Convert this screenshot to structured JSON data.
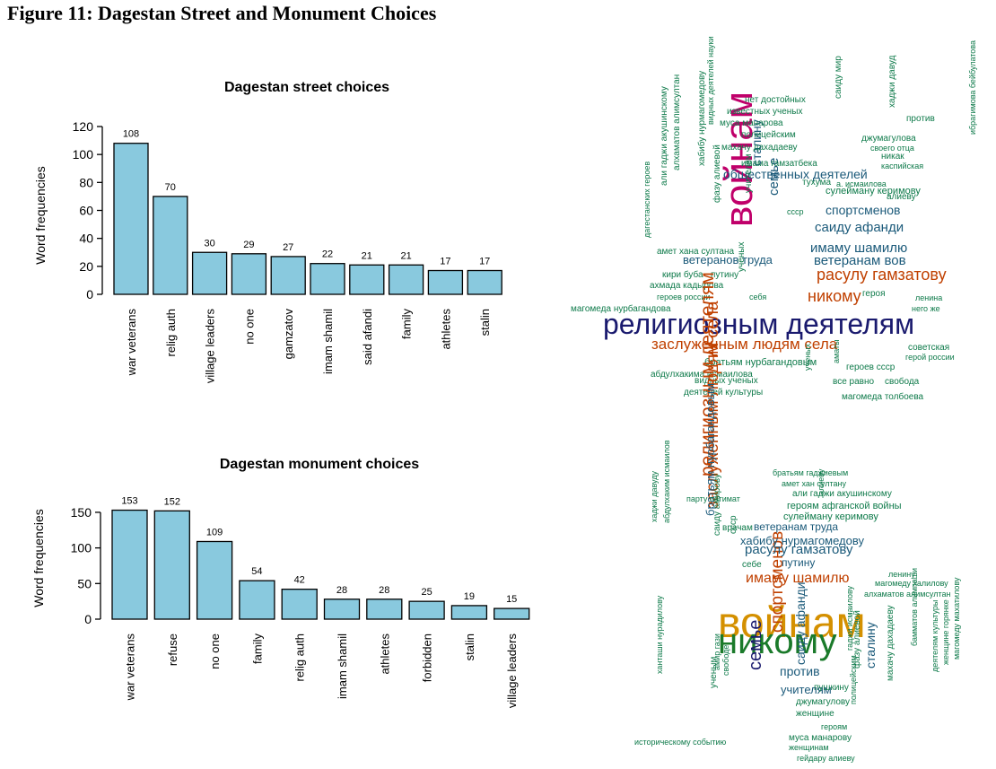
{
  "figure": {
    "title": "Figure 11: Dagestan Street and Monument Choices"
  },
  "chart_data": [
    {
      "id": "street",
      "type": "bar",
      "title": "Dagestan street choices",
      "xlabel": "",
      "ylabel": "Word frequencies",
      "categories": [
        "war veterans",
        "relig auth",
        "village leaders",
        "no one",
        "gamzatov",
        "imam shamil",
        "said afandi",
        "family",
        "athletes",
        "stalin"
      ],
      "values": [
        108,
        70,
        30,
        29,
        27,
        22,
        21,
        21,
        17,
        17
      ],
      "ylim": [
        0,
        120
      ],
      "yticks": [
        0,
        20,
        40,
        60,
        80,
        100,
        120
      ],
      "bar_color": "#89c9de",
      "grid": false
    },
    {
      "id": "monument",
      "type": "bar",
      "title": "Dagestan monument choices",
      "xlabel": "",
      "ylabel": "Word frequencies",
      "categories": [
        "war veterans",
        "refuse",
        "no one",
        "family",
        "relig auth",
        "imam shamil",
        "athletes",
        "forbidden",
        "stalin",
        "village leaders"
      ],
      "values": [
        153,
        152,
        109,
        54,
        42,
        28,
        28,
        25,
        19,
        15
      ],
      "ylim": [
        0,
        160
      ],
      "yticks": [
        0,
        50,
        100,
        150
      ],
      "bar_color": "#89c9de",
      "grid": false
    }
  ],
  "wordclouds": {
    "street": {
      "words": [
        {
          "text": "религиозным деятелям",
          "color": "#1a1a6e"
        },
        {
          "text": "войнам",
          "color": "#c0006a"
        },
        {
          "text": "заслуженным людям села",
          "color": "#c04000"
        },
        {
          "text": "расулу гамзатову",
          "color": "#c04000"
        },
        {
          "text": "никому",
          "color": "#c04000"
        },
        {
          "text": "имаму шамилю",
          "color": "#1b5a7a"
        },
        {
          "text": "саиду афанди",
          "color": "#1b5a7a"
        },
        {
          "text": "ветеранам вов",
          "color": "#1b5a7a"
        },
        {
          "text": "спортсменов",
          "color": "#1b5a7a"
        },
        {
          "text": "общественных деятелей",
          "color": "#1b5a7a"
        },
        {
          "text": "семье",
          "color": "#1b5a7a"
        },
        {
          "text": "сталину",
          "color": "#1b5a7a"
        },
        {
          "text": "ветеранов труда",
          "color": "#1b5a7a"
        },
        {
          "text": "сулейману керимову",
          "color": "#0e7a4a"
        },
        {
          "text": "имама гамзатбека",
          "color": "#0e7a4a"
        },
        {
          "text": "махачу дахадаеву",
          "color": "#0e7a4a"
        },
        {
          "text": "полицейским",
          "color": "#0e7a4a"
        },
        {
          "text": "муса манарова",
          "color": "#0e7a4a"
        },
        {
          "text": "известных ученых",
          "color": "#0e7a4a"
        },
        {
          "text": "нет достойных",
          "color": "#0e7a4a"
        },
        {
          "text": "джумагулова",
          "color": "#0e7a4a"
        },
        {
          "text": "своего отца",
          "color": "#0e7a4a"
        },
        {
          "text": "каспийская",
          "color": "#0e7a4a"
        },
        {
          "text": "тухума",
          "color": "#0e7a4a"
        },
        {
          "text": "а. исмаилова",
          "color": "#0e7a4a"
        },
        {
          "text": "алиеву",
          "color": "#0e7a4a"
        },
        {
          "text": "ахмада кадырова",
          "color": "#0e7a4a"
        },
        {
          "text": "кири буба",
          "color": "#0e7a4a"
        },
        {
          "text": "путину",
          "color": "#0e7a4a"
        },
        {
          "text": "амет хана султана",
          "color": "#0e7a4a"
        },
        {
          "text": "героев россии",
          "color": "#0e7a4a"
        },
        {
          "text": "себя",
          "color": "#0e7a4a"
        },
        {
          "text": "магомеда нурбагандова",
          "color": "#0e7a4a"
        },
        {
          "text": "героя",
          "color": "#0e7a4a"
        },
        {
          "text": "ленина",
          "color": "#0e7a4a"
        },
        {
          "text": "него же",
          "color": "#0e7a4a"
        },
        {
          "text": "советская",
          "color": "#0e7a4a"
        },
        {
          "text": "герой россии",
          "color": "#0e7a4a"
        },
        {
          "text": "братьям нурбагандовым",
          "color": "#0e7a4a"
        },
        {
          "text": "абдулхакима исмаилова",
          "color": "#0e7a4a"
        },
        {
          "text": "героев ссср",
          "color": "#0e7a4a"
        },
        {
          "text": "видных ученых",
          "color": "#0e7a4a"
        },
        {
          "text": "все равно",
          "color": "#0e7a4a"
        },
        {
          "text": "свобода",
          "color": "#0e7a4a"
        },
        {
          "text": "деятелей культуры",
          "color": "#0e7a4a"
        },
        {
          "text": "магомеда толбоева",
          "color": "#0e7a4a"
        },
        {
          "text": "ссср",
          "color": "#0e7a4a"
        },
        {
          "text": "никак",
          "color": "#0e7a4a"
        },
        {
          "text": "против",
          "color": "#0e7a4a"
        },
        {
          "text": "учёных",
          "color": "#0e7a4a"
        },
        {
          "text": "дагестанских героев",
          "color": "#0e7a4a"
        },
        {
          "text": "али гаджи акушинскому",
          "color": "#0e7a4a"
        },
        {
          "text": "алхаматов алимсултан",
          "color": "#0e7a4a"
        },
        {
          "text": "хабибу нурмагомедову",
          "color": "#0e7a4a"
        },
        {
          "text": "фазу алиевой",
          "color": "#0e7a4a"
        },
        {
          "text": "видных деятелей науки",
          "color": "#0e7a4a"
        },
        {
          "text": "саиду мир",
          "color": "#0e7a4a"
        },
        {
          "text": "хаджи давуд",
          "color": "#0e7a4a"
        },
        {
          "text": "ибрагимова бейбулатова",
          "color": "#0e7a4a"
        },
        {
          "text": "учителям",
          "color": "#0e7a4a"
        },
        {
          "text": "аматы",
          "color": "#0e7a4a"
        },
        {
          "text": "ученых",
          "color": "#0e7a4a"
        }
      ]
    },
    "monument": {
      "words": [
        {
          "text": "войнам",
          "color": "#d49000"
        },
        {
          "text": "никому",
          "color": "#1a7a2a"
        },
        {
          "text": "религиозным деятелям",
          "color": "#c04000"
        },
        {
          "text": "заслуженным людям села",
          "color": "#c04000"
        },
        {
          "text": "имаму шамилю",
          "color": "#c04000"
        },
        {
          "text": "семье",
          "color": "#1a1a6e"
        },
        {
          "text": "спортсменов",
          "color": "#c04000"
        },
        {
          "text": "расулу гамзатову",
          "color": "#1b5a7a"
        },
        {
          "text": "хабибу нурмагомедову",
          "color": "#1b5a7a"
        },
        {
          "text": "ветеранам труда",
          "color": "#1b5a7a"
        },
        {
          "text": "путину",
          "color": "#1b5a7a"
        },
        {
          "text": "против",
          "color": "#1b5a7a"
        },
        {
          "text": "учителям",
          "color": "#1b5a7a"
        },
        {
          "text": "сталину",
          "color": "#1b5a7a"
        },
        {
          "text": "саиду афанди",
          "color": "#1b5a7a"
        },
        {
          "text": "братьям нурбагандовым",
          "color": "#1b5a7a"
        },
        {
          "text": "сулейману керимову",
          "color": "#0e7a4a"
        },
        {
          "text": "героям афганской войны",
          "color": "#0e7a4a"
        },
        {
          "text": "али гаджи акушинскому",
          "color": "#0e7a4a"
        },
        {
          "text": "амет хан султану",
          "color": "#0e7a4a"
        },
        {
          "text": "братьям гаджиевым",
          "color": "#0e7a4a"
        },
        {
          "text": "парту патимат",
          "color": "#0e7a4a"
        },
        {
          "text": "врачам",
          "color": "#0e7a4a"
        },
        {
          "text": "ленину",
          "color": "#0e7a4a"
        },
        {
          "text": "магомеду халилову",
          "color": "#0e7a4a"
        },
        {
          "text": "алхаматов алимсултан",
          "color": "#0e7a4a"
        },
        {
          "text": "себе",
          "color": "#0e7a4a"
        },
        {
          "text": "пушкину",
          "color": "#0e7a4a"
        },
        {
          "text": "джумагулову",
          "color": "#0e7a4a"
        },
        {
          "text": "женщине",
          "color": "#0e7a4a"
        },
        {
          "text": "героям",
          "color": "#0e7a4a"
        },
        {
          "text": "муса манарову",
          "color": "#0e7a4a"
        },
        {
          "text": "женщинам",
          "color": "#0e7a4a"
        },
        {
          "text": "историческому событию",
          "color": "#0e7a4a"
        },
        {
          "text": "гейдару алиеву",
          "color": "#0e7a4a"
        },
        {
          "text": "хаджи давуду",
          "color": "#0e7a4a"
        },
        {
          "text": "абдулхаким исмаилов",
          "color": "#0e7a4a"
        },
        {
          "text": "ученым",
          "color": "#0e7a4a"
        },
        {
          "text": "свободе",
          "color": "#0e7a4a"
        },
        {
          "text": "амир гази",
          "color": "#0e7a4a"
        },
        {
          "text": "саиду амирову",
          "color": "#0e7a4a"
        },
        {
          "text": "ссср",
          "color": "#0e7a4a"
        },
        {
          "text": "фазу алиевой",
          "color": "#0e7a4a"
        },
        {
          "text": "махачу дахадаеву",
          "color": "#0e7a4a"
        },
        {
          "text": "деятелям культуры",
          "color": "#0e7a4a"
        },
        {
          "text": "женщине горянке",
          "color": "#0e7a4a"
        },
        {
          "text": "магомеду махатилову",
          "color": "#0e7a4a"
        },
        {
          "text": "бамматов алимпаши",
          "color": "#0e7a4a"
        },
        {
          "text": "полицейским",
          "color": "#0e7a4a"
        },
        {
          "text": "алиеву",
          "color": "#0e7a4a"
        },
        {
          "text": "ханташи нурадилову",
          "color": "#0e7a4a"
        },
        {
          "text": "гаджи исмаилову",
          "color": "#0e7a4a"
        }
      ]
    }
  }
}
